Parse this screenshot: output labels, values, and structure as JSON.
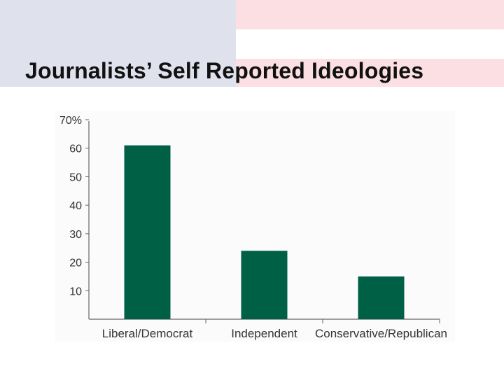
{
  "slide": {
    "title": "Journalists’ Self Reported Ideologies",
    "colors": {
      "band_blue": "#dfe1ec",
      "band_pink": "#fbdfe3",
      "bar": "#006046"
    }
  },
  "chart_data": {
    "type": "bar",
    "categories": [
      "Liberal/Democrat",
      "Independent",
      "Conservative/Republican"
    ],
    "values": [
      61,
      24,
      15
    ],
    "ylim": [
      0,
      70
    ],
    "yticks": [
      10,
      20,
      30,
      40,
      50,
      60,
      70
    ],
    "ytick_labels": [
      "10",
      "20",
      "30",
      "40",
      "50",
      "60",
      "70%"
    ],
    "grid": false,
    "legend": "none",
    "bar_color": "#006046"
  }
}
